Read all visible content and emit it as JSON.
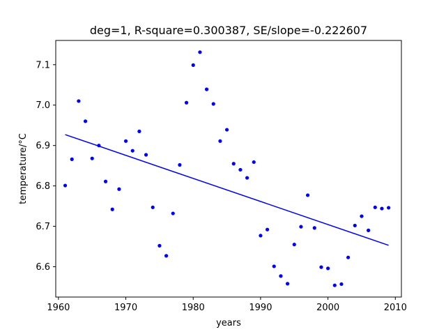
{
  "chart_data": {
    "type": "scatter",
    "title": "deg=1, R-square=0.300387, SE/slope=-0.222607",
    "xlabel": "years",
    "ylabel": "temperature/°C",
    "xlim": [
      1959.6,
      2010.9
    ],
    "ylim": [
      6.525,
      7.16
    ],
    "xticks": [
      1960,
      1970,
      1980,
      1990,
      2000,
      2010
    ],
    "yticks": [
      6.6,
      6.7,
      6.8,
      6.9,
      7.0,
      7.1
    ],
    "ytick_labels": [
      "6.6",
      "6.7",
      "6.8",
      "6.9",
      "7.0",
      "7.1"
    ],
    "grid": false,
    "color": "#0000ff",
    "series": [
      {
        "kind": "points",
        "x": [
          1961,
          1962,
          1963,
          1964,
          1965,
          1966,
          1967,
          1968,
          1969,
          1970,
          1971,
          1972,
          1973,
          1974,
          1975,
          1976,
          1977,
          1978,
          1979,
          1980,
          1981,
          1982,
          1983,
          1984,
          1985,
          1986,
          1987,
          1988,
          1989,
          1990,
          1991,
          1992,
          1993,
          1994,
          1995,
          1996,
          1997,
          1998,
          1999,
          2000,
          2001,
          2002,
          2003,
          2004,
          2005,
          2006,
          2007,
          2008,
          2009
        ],
        "y": [
          6.801,
          6.866,
          7.01,
          6.96,
          6.868,
          6.9,
          6.811,
          6.742,
          6.792,
          6.911,
          6.887,
          6.935,
          6.877,
          6.747,
          6.652,
          6.627,
          6.732,
          6.852,
          7.006,
          7.099,
          7.131,
          7.039,
          7.003,
          6.911,
          6.939,
          6.855,
          6.84,
          6.82,
          6.859,
          6.677,
          6.692,
          6.601,
          6.577,
          6.558,
          6.655,
          6.699,
          6.777,
          6.696,
          6.599,
          6.596,
          6.554,
          6.557,
          6.623,
          6.702,
          6.725,
          6.69,
          6.747,
          6.744,
          6.746
        ]
      },
      {
        "kind": "fit-line",
        "x": [
          1961,
          2009
        ],
        "y": [
          6.927,
          6.653
        ]
      }
    ]
  }
}
